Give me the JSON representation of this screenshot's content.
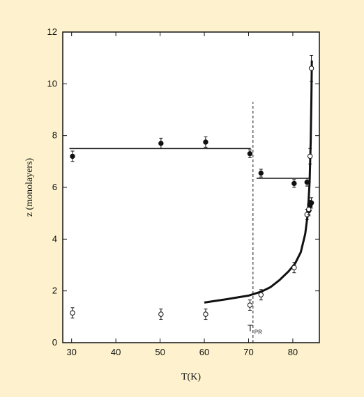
{
  "chart_data": {
    "type": "scatter",
    "title": "",
    "xlabel": "T(K)",
    "ylabel": "z (monolayers)",
    "xlim": [
      28,
      86
    ],
    "ylim": [
      0,
      12
    ],
    "x_ticks": [
      30,
      40,
      50,
      60,
      70,
      80
    ],
    "y_ticks": [
      0,
      2,
      4,
      6,
      8,
      10,
      12
    ],
    "grid": false,
    "background": "#fdf2cd",
    "plot_background": "#ffffff",
    "series": [
      {
        "marker": "filled-circle",
        "points": [
          {
            "x": 30.2,
            "y": 7.2,
            "err": 0.2
          },
          {
            "x": 50.2,
            "y": 7.7,
            "err": 0.2
          },
          {
            "x": 60.3,
            "y": 7.75,
            "err": 0.2
          },
          {
            "x": 70.3,
            "y": 7.3,
            "err": 0.15
          },
          {
            "x": 72.8,
            "y": 6.55,
            "err": 0.15
          },
          {
            "x": 80.3,
            "y": 6.15,
            "err": 0.15
          },
          {
            "x": 83.2,
            "y": 6.2,
            "err": 0.15
          },
          {
            "x": 83.6,
            "y": 5.1,
            "err": 0.2
          },
          {
            "x": 83.9,
            "y": 5.3,
            "err": 0.2
          },
          {
            "x": 84.2,
            "y": 5.4,
            "err": 0.2
          }
        ]
      },
      {
        "marker": "open-circle",
        "points": [
          {
            "x": 30.2,
            "y": 1.15,
            "err": 0.2
          },
          {
            "x": 50.2,
            "y": 1.1,
            "err": 0.2
          },
          {
            "x": 60.3,
            "y": 1.1,
            "err": 0.2
          },
          {
            "x": 70.3,
            "y": 1.45,
            "err": 0.2
          },
          {
            "x": 72.8,
            "y": 1.85,
            "err": 0.2
          },
          {
            "x": 80.3,
            "y": 2.9,
            "err": 0.2
          },
          {
            "x": 83.2,
            "y": 4.95,
            "err": 0.2
          },
          {
            "x": 83.6,
            "y": 5.15,
            "err": 0.2
          },
          {
            "x": 83.9,
            "y": 7.2,
            "err": 0.3
          },
          {
            "x": 84.2,
            "y": 10.6,
            "err": 0.5
          }
        ]
      }
    ],
    "fit_lines": [
      {
        "style": "solid",
        "points": [
          [
            29.5,
            7.5
          ],
          [
            70.5,
            7.5
          ]
        ]
      },
      {
        "style": "solid",
        "points": [
          [
            71.8,
            6.35
          ],
          [
            84.0,
            6.35
          ]
        ]
      },
      {
        "style": "bold-curve",
        "points": [
          [
            60,
            1.55
          ],
          [
            65,
            1.68
          ],
          [
            70,
            1.82
          ],
          [
            73,
            1.98
          ],
          [
            75,
            2.15
          ],
          [
            77,
            2.42
          ],
          [
            79,
            2.75
          ],
          [
            80.5,
            3.05
          ],
          [
            81.8,
            3.5
          ],
          [
            82.8,
            4.2
          ],
          [
            83.4,
            5.0
          ],
          [
            83.8,
            6.2
          ],
          [
            84.05,
            7.8
          ],
          [
            84.2,
            9.5
          ],
          [
            84.3,
            10.9
          ]
        ]
      }
    ],
    "vertical_marker": {
      "x": 71,
      "y_from": 0,
      "y_to": 9.3,
      "style": "dashed"
    },
    "annotation": {
      "text": "T",
      "subscript": "PR",
      "x": 71,
      "y": 0.5
    }
  }
}
